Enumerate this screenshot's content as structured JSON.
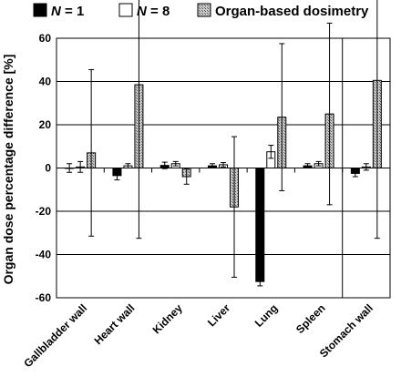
{
  "chart_data": {
    "type": "bar",
    "title": "",
    "xlabel": "",
    "ylabel": "Organ dose percentage  difference [%]",
    "ylim": [
      -60,
      60
    ],
    "yticks": [
      -60,
      -40,
      -20,
      0,
      20,
      40,
      60
    ],
    "grid": "horizontal",
    "legend_position": "top",
    "categories": [
      "Gallbladder wall",
      "Heart wall",
      "Kidney",
      "Liver",
      "Lung",
      "Spleen",
      "Stomach wall"
    ],
    "series": [
      {
        "name": "N = 1",
        "name_italic": "N",
        "name_rest": " = 1",
        "style": "solid-black",
        "values": [
          0,
          -3.5,
          1.2,
          1.0,
          -52.5,
          1.0,
          -2.5
        ],
        "error": [
          2.0,
          2.0,
          1.5,
          1.0,
          2.0,
          1.0,
          1.5
        ]
      },
      {
        "name": "N = 8",
        "name_italic": "N",
        "name_rest": " = 8",
        "style": "white",
        "values": [
          0.5,
          1.0,
          2.0,
          1.5,
          7.5,
          2.0,
          0.5
        ],
        "error": [
          2.5,
          1.0,
          1.0,
          1.0,
          3.0,
          1.0,
          1.5
        ]
      },
      {
        "name": "Organ-based dosimetry",
        "style": "hatched",
        "values": [
          7.0,
          38.5,
          -4.0,
          -18.0,
          23.5,
          25.0,
          40.5
        ],
        "error": [
          38.5,
          71.0,
          3.5,
          32.5,
          34.0,
          42.0,
          73.0
        ]
      }
    ]
  }
}
